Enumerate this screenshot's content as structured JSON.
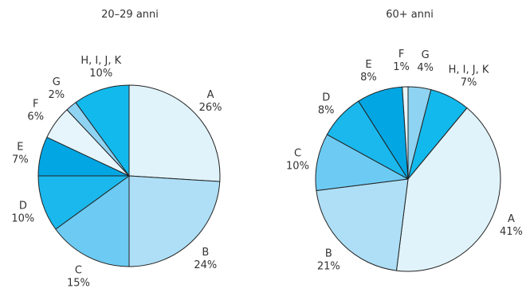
{
  "chart_data": [
    {
      "type": "pie",
      "title": "20–29 anni",
      "start_angle_deg": 0,
      "direction": "clockwise",
      "slices": [
        {
          "label": "A",
          "value": 26,
          "value_text": "26%",
          "color": "#e0f3fb"
        },
        {
          "label": "B",
          "value": 24,
          "value_text": "24%",
          "color": "#aedff6"
        },
        {
          "label": "C",
          "value": 15,
          "value_text": "15%",
          "color": "#6dcbf3"
        },
        {
          "label": "D",
          "value": 10,
          "value_text": "10%",
          "color": "#1ab8ec"
        },
        {
          "label": "E",
          "value": 7,
          "value_text": "7%",
          "color": "#02a6e3"
        },
        {
          "label": "F",
          "value": 6,
          "value_text": "6%",
          "color": "#e6f5fc"
        },
        {
          "label": "G",
          "value": 2,
          "value_text": "2%",
          "color": "#8fd3f2"
        },
        {
          "label": "H, I, J, K",
          "value": 10,
          "value_text": "10%",
          "color": "#12b9ec"
        }
      ]
    },
    {
      "type": "pie",
      "title": "60+ anni",
      "start_angle_deg": 0,
      "direction": "clockwise",
      "slices": [
        {
          "label": "G",
          "value": 4,
          "value_text": "4%",
          "color": "#8fd3f2"
        },
        {
          "label": "H, I, J, K",
          "value": 7,
          "value_text": "7%",
          "color": "#12b9ec"
        },
        {
          "label": "A",
          "value": 41,
          "value_text": "41%",
          "color": "#e0f3fb"
        },
        {
          "label": "B",
          "value": 21,
          "value_text": "21%",
          "color": "#aedff6"
        },
        {
          "label": "C",
          "value": 10,
          "value_text": "10%",
          "color": "#6dcbf3"
        },
        {
          "label": "D",
          "value": 8,
          "value_text": "8%",
          "color": "#1ab8ec"
        },
        {
          "label": "E",
          "value": 8,
          "value_text": "8%",
          "color": "#02a6e3"
        },
        {
          "label": "F",
          "value": 1,
          "value_text": "1%",
          "color": "#e6f5fc"
        }
      ]
    }
  ]
}
